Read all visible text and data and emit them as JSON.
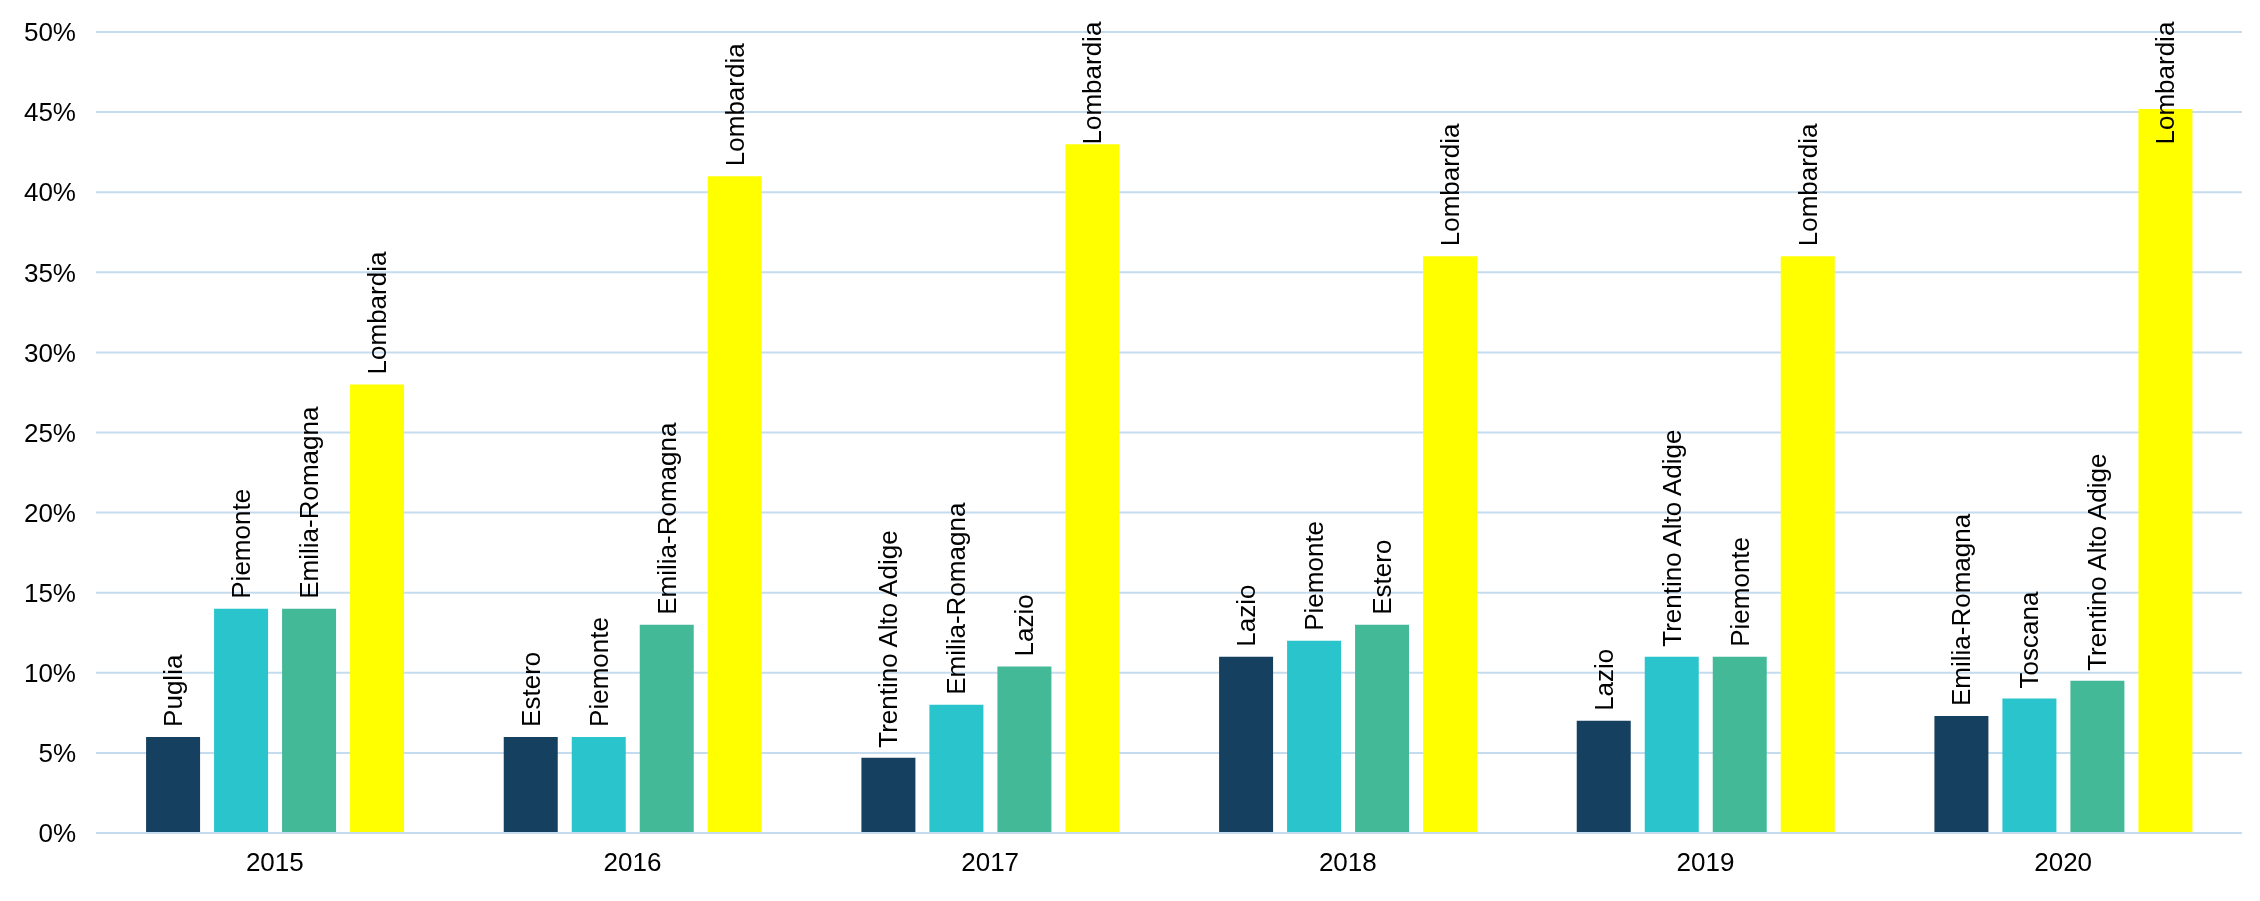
{
  "chart_data": {
    "type": "bar",
    "categories": [
      "2015",
      "2016",
      "2017",
      "2018",
      "2019",
      "2020"
    ],
    "series": [
      {
        "color": "#16405f",
        "values": [
          6,
          6,
          4.7,
          11,
          7,
          7.3
        ],
        "value_labels": [
          "Puglia",
          "Estero",
          "Trentino Alto Adige",
          "Lazio",
          "Lazio",
          "Emilia-Romagna"
        ]
      },
      {
        "color": "#29c4cc",
        "values": [
          14,
          6,
          8,
          12,
          11,
          8.4
        ],
        "value_labels": [
          "Piemonte",
          "Piemonte",
          "Emilia-Romagna",
          "Piemonte",
          "Trentino Alto Adige",
          "Toscana"
        ]
      },
      {
        "color": "#44b997",
        "values": [
          14,
          13,
          10.4,
          13,
          11,
          9.5
        ],
        "value_labels": [
          "Emilia-Romagna",
          "Emilia-Romagna",
          "Lazio",
          "Estero",
          "Piemonte",
          "Trentino Alto Adige"
        ]
      },
      {
        "color": "#ffff00",
        "values": [
          28,
          41,
          43,
          36,
          36,
          45.2
        ],
        "value_labels": [
          "Lombardia",
          "Lombardia",
          "Lombardia",
          "Lombardia",
          "Lombardia",
          "Lombardia"
        ]
      }
    ],
    "ylim": [
      0,
      50
    ],
    "yticks": [
      {
        "value": 0,
        "label": "0%"
      },
      {
        "value": 5,
        "label": "5%"
      },
      {
        "value": 10,
        "label": "10%"
      },
      {
        "value": 15,
        "label": "15%"
      },
      {
        "value": 20,
        "label": "20%"
      },
      {
        "value": 25,
        "label": "25%"
      },
      {
        "value": 30,
        "label": "30%"
      },
      {
        "value": 35,
        "label": "35%"
      },
      {
        "value": 40,
        "label": "40%"
      },
      {
        "value": 45,
        "label": "45%"
      },
      {
        "value": 50,
        "label": "50%"
      }
    ],
    "grid": "y",
    "legend": false
  }
}
